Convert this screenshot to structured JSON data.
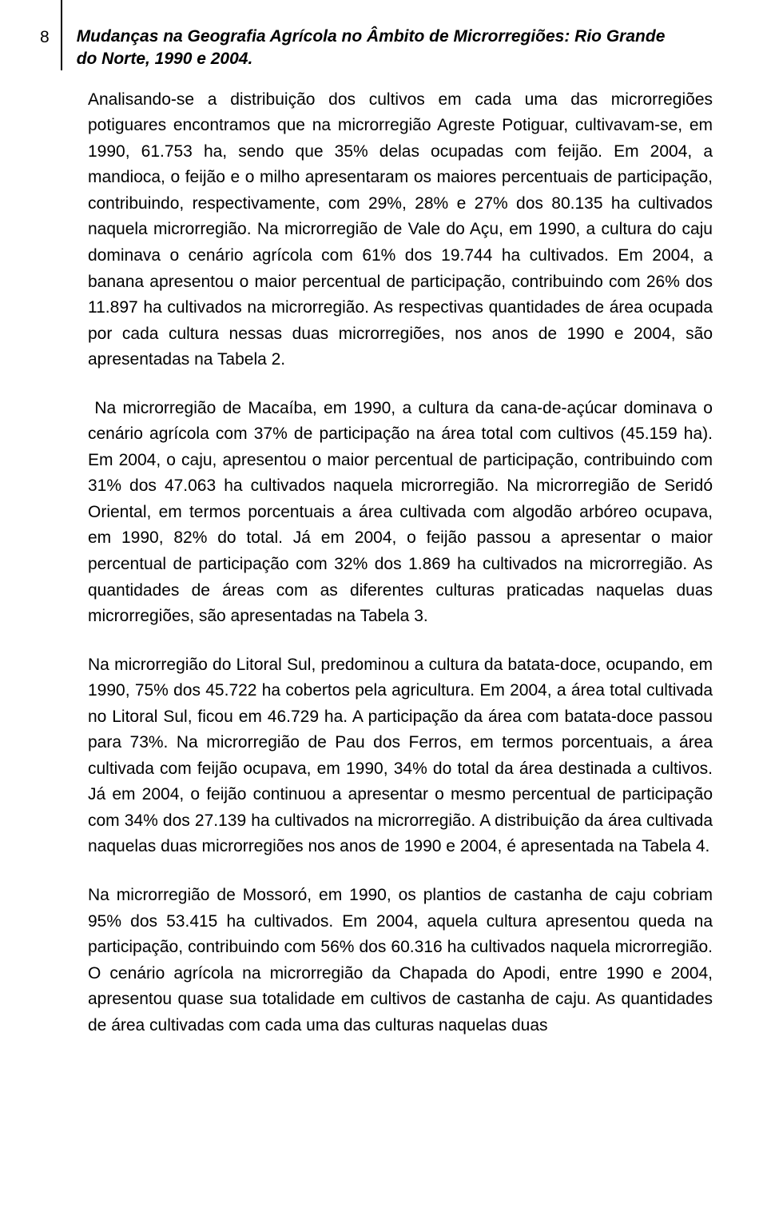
{
  "typography": {
    "body_font_family": "Arial, Helvetica, sans-serif",
    "body_font_size_pt": 16,
    "title_font_size_pt": 16,
    "title_italic": true,
    "title_bold": true,
    "line_height": 1.55,
    "text_color": "#000000",
    "background_color": "#ffffff"
  },
  "page_number": "8",
  "title": "Mudanças na Geografia Agrícola no Âmbito de Microrregiões: Rio Grande do Norte, 1990 e 2004.",
  "paragraphs": {
    "p1": "Analisando-se a distribuição dos cultivos em cada uma das microrregiões potiguares encontramos que na microrregião Agreste Potiguar, cultivavam-se, em 1990, 61.753 ha, sendo que 35% delas ocupadas com feijão. Em 2004, a mandioca, o feijão e o milho apresentaram os maiores percentuais de participação, contribuindo, respectivamente, com 29%, 28% e 27% dos 80.135 ha cultivados naquela microrregião. Na microrregião de Vale do Açu, em 1990, a cultura do caju dominava o cenário agrícola com 61% dos 19.744 ha cultivados. Em 2004, a banana apresentou o maior percentual de participação, contribuindo com 26% dos 11.897 ha cultivados na microrregião. As respectivas quantidades de área ocupada por cada cultura nessas duas microrregiões, nos anos de 1990 e 2004, são apresentadas na Tabela 2.",
    "p2": " Na microrregião de Macaíba, em 1990, a cultura da cana-de-açúcar dominava o cenário agrícola com 37% de participação na área total com cultivos (45.159 ha). Em 2004, o caju, apresentou o maior percentual de participação, contribuindo com 31% dos 47.063 ha cultivados naquela microrregião. Na microrregião de Seridó Oriental, em termos porcentuais a área cultivada com algodão arbóreo ocupava, em 1990, 82% do total. Já em 2004, o feijão passou a apresentar o maior percentual de participação com 32% dos 1.869 ha cultivados na microrregião. As quantidades de áreas com as diferentes culturas praticadas naquelas duas microrregiões, são apresentadas na Tabela 3.",
    "p3": "Na microrregião do Litoral Sul, predominou a cultura da batata-doce, ocupando, em 1990, 75% dos 45.722 ha cobertos pela agricultura. Em 2004, a área total cultivada no Litoral Sul, ficou em 46.729 ha. A participação da área com batata-doce passou para 73%. Na microrregião de Pau dos Ferros, em termos porcentuais, a área cultivada com feijão ocupava, em 1990, 34% do total da área destinada a cultivos. Já em 2004, o feijão continuou a apresentar o mesmo percentual de participação com 34% dos 27.139 ha cultivados na microrregião. A distribuição da área cultivada naquelas duas microrregiões nos anos de 1990 e 2004, é apresentada na Tabela 4.",
    "p4": "Na microrregião de Mossoró, em 1990, os plantios de castanha de caju cobriam 95% dos 53.415 ha cultivados. Em 2004, aquela cultura apresentou queda na participação, contribuindo com 56% dos 60.316 ha cultivados naquela microrregião. O cenário agrícola na microrregião da Chapada do Apodi, entre 1990 e 2004, apresentou quase sua totalidade em cultivos de castanha de caju. As quantidades de área cultivadas com cada uma das culturas naquelas duas"
  }
}
